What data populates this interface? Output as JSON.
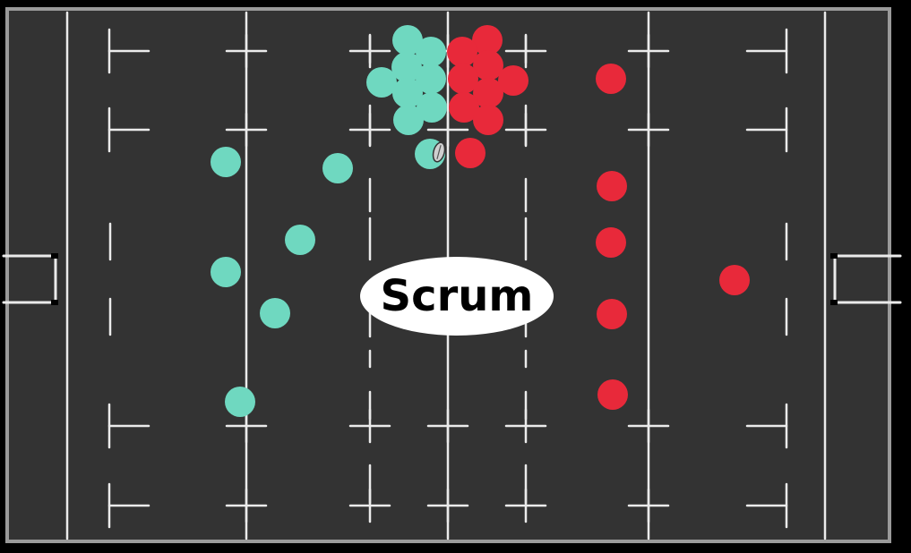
{
  "diagram": {
    "label": "Scrum",
    "colors": {
      "background": "#000000",
      "pitch": "#333333",
      "pitch_border": "#9a9a9a",
      "lines": "#ebebeb",
      "label_bubble": "#ffffff",
      "label_text": "#000000"
    },
    "teams": [
      {
        "key": "teal",
        "color": "#6fd8c0",
        "player_count": 15
      },
      {
        "key": "red",
        "color": "#e8293a",
        "player_count": 15
      }
    ],
    "ball": {
      "icon": "rugby-ball-icon",
      "color": "#cfcfcf"
    }
  }
}
